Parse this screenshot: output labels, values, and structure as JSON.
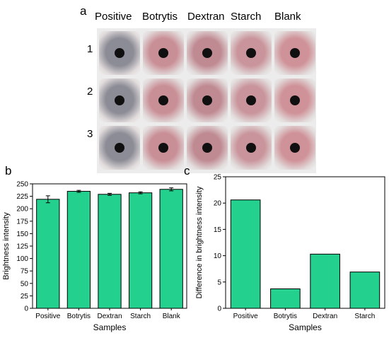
{
  "panel_a": {
    "label": "a",
    "columns": [
      "Positive",
      "Botrytis",
      "Dextran",
      "Starch",
      "Blank"
    ],
    "rows": [
      "1",
      "2",
      "3"
    ],
    "swab_colors": [
      "#8c8c96",
      "#c98f96",
      "#c08a92",
      "#c9949b",
      "#cf9298"
    ]
  },
  "panel_b_label": "b",
  "panel_c_label": "c",
  "chart_data": [
    {
      "type": "bar",
      "categories": [
        "Positive",
        "Botrytis",
        "Dextran",
        "Starch",
        "Blank"
      ],
      "values": [
        219,
        235,
        229,
        232,
        239
      ],
      "errors": [
        7,
        2,
        2,
        2,
        3
      ],
      "xlabel": "Samples",
      "ylabel": "Brightness intensity",
      "ylim": [
        0,
        250
      ],
      "yticks": [
        0,
        25,
        50,
        75,
        100,
        125,
        150,
        175,
        200,
        225,
        250
      ],
      "bar_color": "#23d08d"
    },
    {
      "type": "bar",
      "categories": [
        "Positive",
        "Botrytis",
        "Dextran",
        "Starch"
      ],
      "values": [
        20.6,
        3.7,
        10.3,
        6.9
      ],
      "xlabel": "Samples",
      "ylabel": "Difference in brightness intensity",
      "ylim": [
        0,
        25
      ],
      "yticks": [
        0,
        5,
        10,
        15,
        20,
        25
      ],
      "bar_color": "#23d08d"
    }
  ]
}
